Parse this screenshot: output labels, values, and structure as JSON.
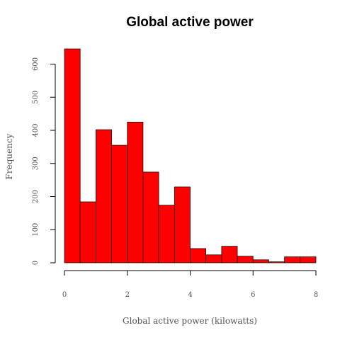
{
  "chart_data": {
    "type": "bar",
    "title": "Global active power",
    "xlabel": "Global active power (kilowatts)",
    "ylabel": "Frequency",
    "bin_edges": [
      0,
      0.5,
      1,
      1.5,
      2,
      2.5,
      3,
      3.5,
      4,
      4.5,
      5,
      5.5,
      6,
      6.5,
      7,
      7.5,
      8
    ],
    "values": [
      646,
      184,
      402,
      355,
      425,
      274,
      174,
      229,
      43,
      24,
      50,
      20,
      9,
      3,
      18,
      18
    ],
    "xlim": [
      0,
      8
    ],
    "ylim": [
      0,
      646
    ],
    "xticks": [
      0,
      2,
      4,
      6,
      8
    ],
    "yticks": [
      0,
      100,
      200,
      300,
      400,
      500,
      600
    ],
    "bar_color": "#ff0000",
    "grid": false,
    "legend": "none"
  }
}
